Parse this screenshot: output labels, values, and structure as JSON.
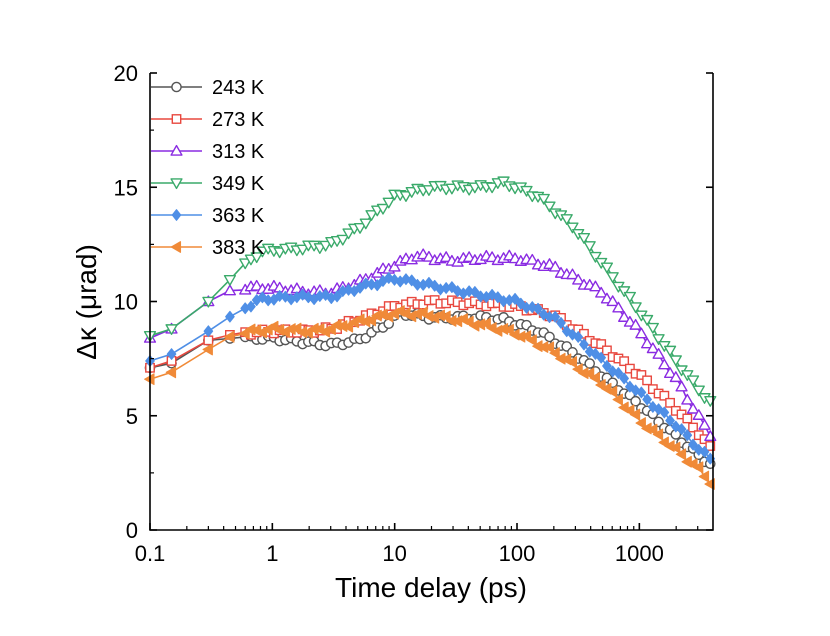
{
  "chart_data": {
    "type": "scatter",
    "title": "",
    "xlabel": "Time delay (ps)",
    "ylabel": "Δκ (μrad)",
    "xscale": "log",
    "xlim": [
      0.1,
      4000
    ],
    "ylim": [
      0,
      20
    ],
    "xticks": [
      "0.1",
      "1",
      "10",
      "100",
      "1000"
    ],
    "yticks": [
      "0",
      "5",
      "10",
      "15",
      "20"
    ],
    "legend_position": "top-left",
    "series": [
      {
        "name": "243 K",
        "color": "#555555",
        "marker": "circle",
        "fill": "open",
        "keypoints": [
          [
            0.1,
            7.1
          ],
          [
            0.15,
            7.3
          ],
          [
            0.3,
            8.3
          ],
          [
            0.5,
            8.4
          ],
          [
            1,
            8.4
          ],
          [
            2,
            8.2
          ],
          [
            3,
            8.1
          ],
          [
            5,
            8.3
          ],
          [
            8,
            8.9
          ],
          [
            11,
            9.5
          ],
          [
            20,
            9.3
          ],
          [
            50,
            9.3
          ],
          [
            80,
            9.2
          ],
          [
            150,
            8.7
          ],
          [
            300,
            7.7
          ],
          [
            600,
            6.4
          ],
          [
            1000,
            5.5
          ],
          [
            2000,
            4.1
          ],
          [
            3000,
            3.3
          ],
          [
            3800,
            2.9
          ]
        ]
      },
      {
        "name": "273 K",
        "color": "#e8483f",
        "marker": "square",
        "fill": "open",
        "keypoints": [
          [
            0.1,
            7.1
          ],
          [
            0.15,
            7.4
          ],
          [
            0.3,
            8.3
          ],
          [
            0.5,
            8.6
          ],
          [
            1,
            8.7
          ],
          [
            2,
            8.7
          ],
          [
            3,
            8.8
          ],
          [
            5,
            9.2
          ],
          [
            10,
            9.8
          ],
          [
            20,
            10.0
          ],
          [
            50,
            9.9
          ],
          [
            100,
            9.8
          ],
          [
            200,
            9.4
          ],
          [
            500,
            8.0
          ],
          [
            1000,
            6.8
          ],
          [
            2000,
            5.3
          ],
          [
            3000,
            4.3
          ],
          [
            3800,
            3.6
          ]
        ]
      },
      {
        "name": "313 K",
        "color": "#8a2be2",
        "marker": "triangle-up",
        "fill": "open",
        "keypoints": [
          [
            0.1,
            8.4
          ],
          [
            0.15,
            8.8
          ],
          [
            0.3,
            10.0
          ],
          [
            0.5,
            10.6
          ],
          [
            1,
            10.6
          ],
          [
            2,
            10.4
          ],
          [
            3,
            10.4
          ],
          [
            5,
            10.8
          ],
          [
            10,
            11.6
          ],
          [
            15,
            12.0
          ],
          [
            30,
            11.8
          ],
          [
            50,
            11.9
          ],
          [
            100,
            11.9
          ],
          [
            200,
            11.5
          ],
          [
            500,
            10.4
          ],
          [
            1000,
            8.7
          ],
          [
            2000,
            6.6
          ],
          [
            3000,
            5.0
          ],
          [
            3800,
            4.2
          ]
        ]
      },
      {
        "name": "349 K",
        "color": "#3aaa6a",
        "marker": "triangle-down",
        "fill": "open",
        "keypoints": [
          [
            0.1,
            8.5
          ],
          [
            0.15,
            8.8
          ],
          [
            0.3,
            10.0
          ],
          [
            0.5,
            11.2
          ],
          [
            0.8,
            12.2
          ],
          [
            1.5,
            12.3
          ],
          [
            3,
            12.5
          ],
          [
            5,
            13.2
          ],
          [
            10,
            14.6
          ],
          [
            20,
            15.0
          ],
          [
            50,
            15.0
          ],
          [
            80,
            15.2
          ],
          [
            150,
            14.6
          ],
          [
            300,
            13.2
          ],
          [
            600,
            11.1
          ],
          [
            1000,
            9.6
          ],
          [
            2000,
            7.4
          ],
          [
            3000,
            6.2
          ],
          [
            3800,
            5.6
          ]
        ]
      },
      {
        "name": "363 K",
        "color": "#4f8fe6",
        "marker": "diamond",
        "fill": "filled",
        "keypoints": [
          [
            0.1,
            7.4
          ],
          [
            0.15,
            7.7
          ],
          [
            0.3,
            8.7
          ],
          [
            0.5,
            9.5
          ],
          [
            0.8,
            10.1
          ],
          [
            1.5,
            10.2
          ],
          [
            3,
            10.2
          ],
          [
            5,
            10.6
          ],
          [
            10,
            11.0
          ],
          [
            20,
            10.7
          ],
          [
            50,
            10.3
          ],
          [
            100,
            10.0
          ],
          [
            200,
            9.3
          ],
          [
            500,
            7.4
          ],
          [
            1000,
            6.0
          ],
          [
            2000,
            4.6
          ],
          [
            3000,
            3.6
          ],
          [
            3800,
            3.1
          ]
        ]
      },
      {
        "name": "383 K",
        "color": "#f08a38",
        "marker": "triangle-left",
        "fill": "filled",
        "keypoints": [
          [
            0.1,
            6.6
          ],
          [
            0.15,
            6.9
          ],
          [
            0.3,
            7.9
          ],
          [
            0.5,
            8.6
          ],
          [
            1,
            8.8
          ],
          [
            2,
            8.7
          ],
          [
            3,
            8.8
          ],
          [
            5,
            9.1
          ],
          [
            10,
            9.5
          ],
          [
            20,
            9.4
          ],
          [
            50,
            9.0
          ],
          [
            100,
            8.6
          ],
          [
            200,
            7.8
          ],
          [
            500,
            6.4
          ],
          [
            1000,
            4.8
          ],
          [
            2000,
            3.5
          ],
          [
            3000,
            2.7
          ],
          [
            3800,
            2.1
          ]
        ]
      }
    ]
  }
}
